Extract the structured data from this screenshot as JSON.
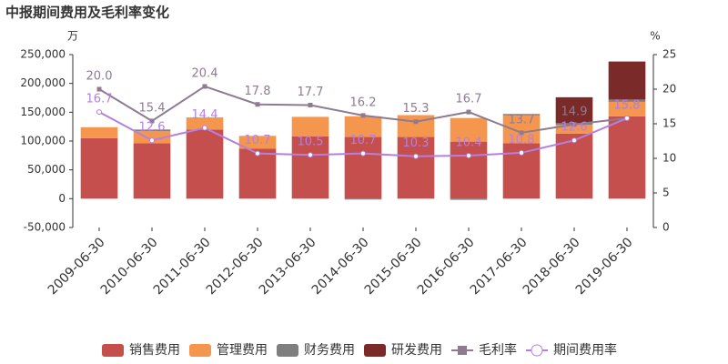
{
  "chart_data": {
    "type": "bar",
    "stacked": true,
    "title": "中报期间费用及毛利率变化",
    "y_unit": "万",
    "y2_unit": "%",
    "categories": [
      "2009-06-30",
      "2010-06-30",
      "2011-06-30",
      "2012-06-30",
      "2013-06-30",
      "2014-06-30",
      "2015-06-30",
      "2016-06-30",
      "2017-06-30",
      "2018-06-30",
      "2019-06-30"
    ],
    "series": [
      {
        "name": "销售费用",
        "color": "#c44f4c",
        "values": [
          105000,
          96000,
          120000,
          87000,
          108000,
          107000,
          107000,
          99000,
          96000,
          113000,
          143000
        ]
      },
      {
        "name": "管理费用",
        "color": "#f5964f",
        "values": [
          19000,
          21000,
          21000,
          22000,
          34000,
          36000,
          38000,
          41000,
          49000,
          15000,
          25000
        ]
      },
      {
        "name": "财务费用",
        "color": "#7f7f7f",
        "values": [
          0,
          3000,
          0,
          0,
          0,
          -1500,
          0,
          -2000,
          2000,
          3000,
          4000
        ]
      },
      {
        "name": "研发费用",
        "color": "#7b2a2a",
        "values": [
          0,
          0,
          0,
          0,
          0,
          0,
          0,
          0,
          0,
          45000,
          66000
        ]
      },
      {
        "name": "毛利率",
        "type": "line",
        "axis": "y2",
        "color": "#8e7b90",
        "marker": "square",
        "values": [
          20.0,
          15.4,
          20.4,
          17.8,
          17.7,
          16.2,
          15.3,
          16.7,
          13.7,
          14.9,
          15.8
        ],
        "value_labels": [
          "20.0",
          "15.4",
          "20.4",
          "17.8",
          "17.7",
          "16.2",
          "15.3",
          "16.7",
          "13.7",
          "14.9",
          "15.8"
        ]
      },
      {
        "name": "期间费用率",
        "type": "line",
        "axis": "y2",
        "color": "#b57fe0",
        "marker": "circle",
        "values": [
          16.7,
          12.6,
          14.4,
          10.7,
          10.5,
          10.7,
          10.3,
          10.4,
          10.8,
          12.6,
          15.8
        ],
        "value_labels": [
          "16.7",
          "12.6",
          "14.4",
          "10.7",
          "10.5",
          "10.7",
          "10.3",
          "10.4",
          "10.8",
          "12.6",
          "15.8"
        ]
      }
    ],
    "ylim": [
      -50000,
      250000
    ],
    "yticks": [
      {
        "value": -50000,
        "label": "-50,000"
      },
      0,
      {
        "value": 50000,
        "label": "50,000"
      },
      {
        "value": 100000,
        "label": "100,000"
      },
      {
        "value": 150000,
        "label": "150,000"
      },
      {
        "value": 200000,
        "label": "200,000"
      },
      {
        "value": 250000,
        "label": "250,000"
      }
    ],
    "y2lim": [
      0,
      25
    ],
    "y2ticks": [
      0,
      5,
      10,
      15,
      20,
      25
    ],
    "grid": false,
    "legend": "bottom"
  }
}
